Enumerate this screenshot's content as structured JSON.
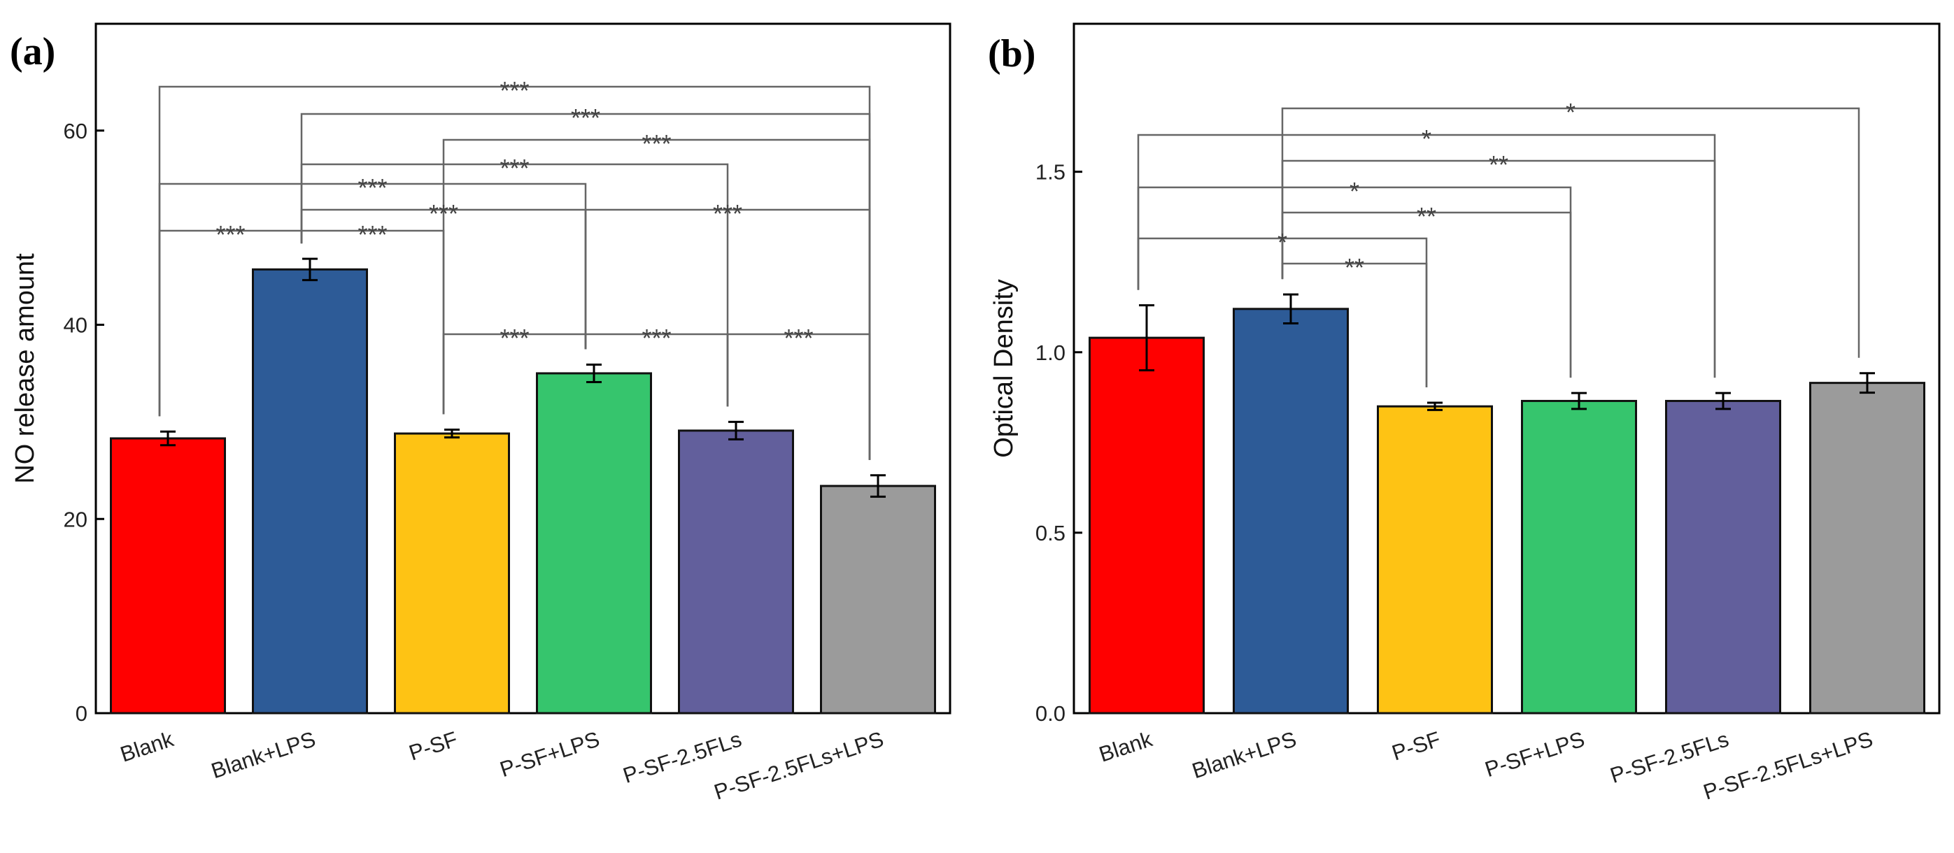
{
  "chart_data": [
    {
      "type": "bar",
      "panel_label": "(a)",
      "title": "",
      "xlabel": "",
      "ylabel": "NO release amount",
      "ylim": [
        0,
        71
      ],
      "yticks": [
        0,
        20,
        40,
        60
      ],
      "categories": [
        "Blank",
        "Blank+LPS",
        "P-SF",
        "P-SF+LPS",
        "P-SF-2.5FLs",
        "P-SF-2.5FLs+LPS"
      ],
      "values": [
        28.3,
        45.7,
        28.8,
        35.0,
        29.1,
        23.4
      ],
      "errors": [
        0.7,
        1.1,
        0.4,
        0.9,
        0.9,
        1.1
      ],
      "colors": [
        "#ff0000",
        "#2d5b97",
        "#fec314",
        "#36c56d",
        "#625f9c",
        "#9b9b9b"
      ],
      "significance": [
        {
          "from": 0,
          "to": 5,
          "label": "***"
        },
        {
          "from": 1,
          "to": 5,
          "label": "***"
        },
        {
          "from": 2,
          "to": 5,
          "label": "***"
        },
        {
          "from": 1,
          "to": 4,
          "label": "***"
        },
        {
          "from": 0,
          "to": 3,
          "label": "***"
        },
        {
          "from": 0,
          "to": 1,
          "label": "***"
        },
        {
          "from": 1,
          "to": 2,
          "label": "***"
        },
        {
          "from": 1,
          "to": 3,
          "label": "***"
        },
        {
          "from": 3,
          "to": 5,
          "label": "***"
        },
        {
          "from": 2,
          "to": 3,
          "label": "***"
        },
        {
          "from": 3,
          "to": 4,
          "label": "***"
        },
        {
          "from": 4,
          "to": 5,
          "label": "***"
        }
      ]
    },
    {
      "type": "bar",
      "panel_label": "(b)",
      "title": "",
      "xlabel": "",
      "ylabel": "Optical Density",
      "ylim": [
        0,
        1.91
      ],
      "yticks": [
        0.0,
        0.5,
        1.0,
        1.5
      ],
      "ytick_labels": [
        "0.0",
        "0.5",
        "1.0",
        "1.5"
      ],
      "categories": [
        "Blank",
        "Blank+LPS",
        "P-SF",
        "P-SF+LPS",
        "P-SF-2.5FLs",
        "P-SF-2.5FLs+LPS"
      ],
      "values": [
        1.04,
        1.12,
        0.85,
        0.865,
        0.865,
        0.915
      ],
      "errors": [
        0.09,
        0.04,
        0.01,
        0.022,
        0.022,
        0.027
      ],
      "colors": [
        "#ff0000",
        "#2d5b97",
        "#fec314",
        "#36c56d",
        "#625f9c",
        "#9b9b9b"
      ],
      "significance": [
        {
          "from": 1,
          "to": 5,
          "label": "*"
        },
        {
          "from": 0,
          "to": 4,
          "label": "*"
        },
        {
          "from": 1,
          "to": 4,
          "label": "**"
        },
        {
          "from": 0,
          "to": 3,
          "label": "*"
        },
        {
          "from": 1,
          "to": 3,
          "label": "**"
        },
        {
          "from": 0,
          "to": 2,
          "label": "*"
        },
        {
          "from": 1,
          "to": 2,
          "label": "**"
        }
      ]
    }
  ]
}
